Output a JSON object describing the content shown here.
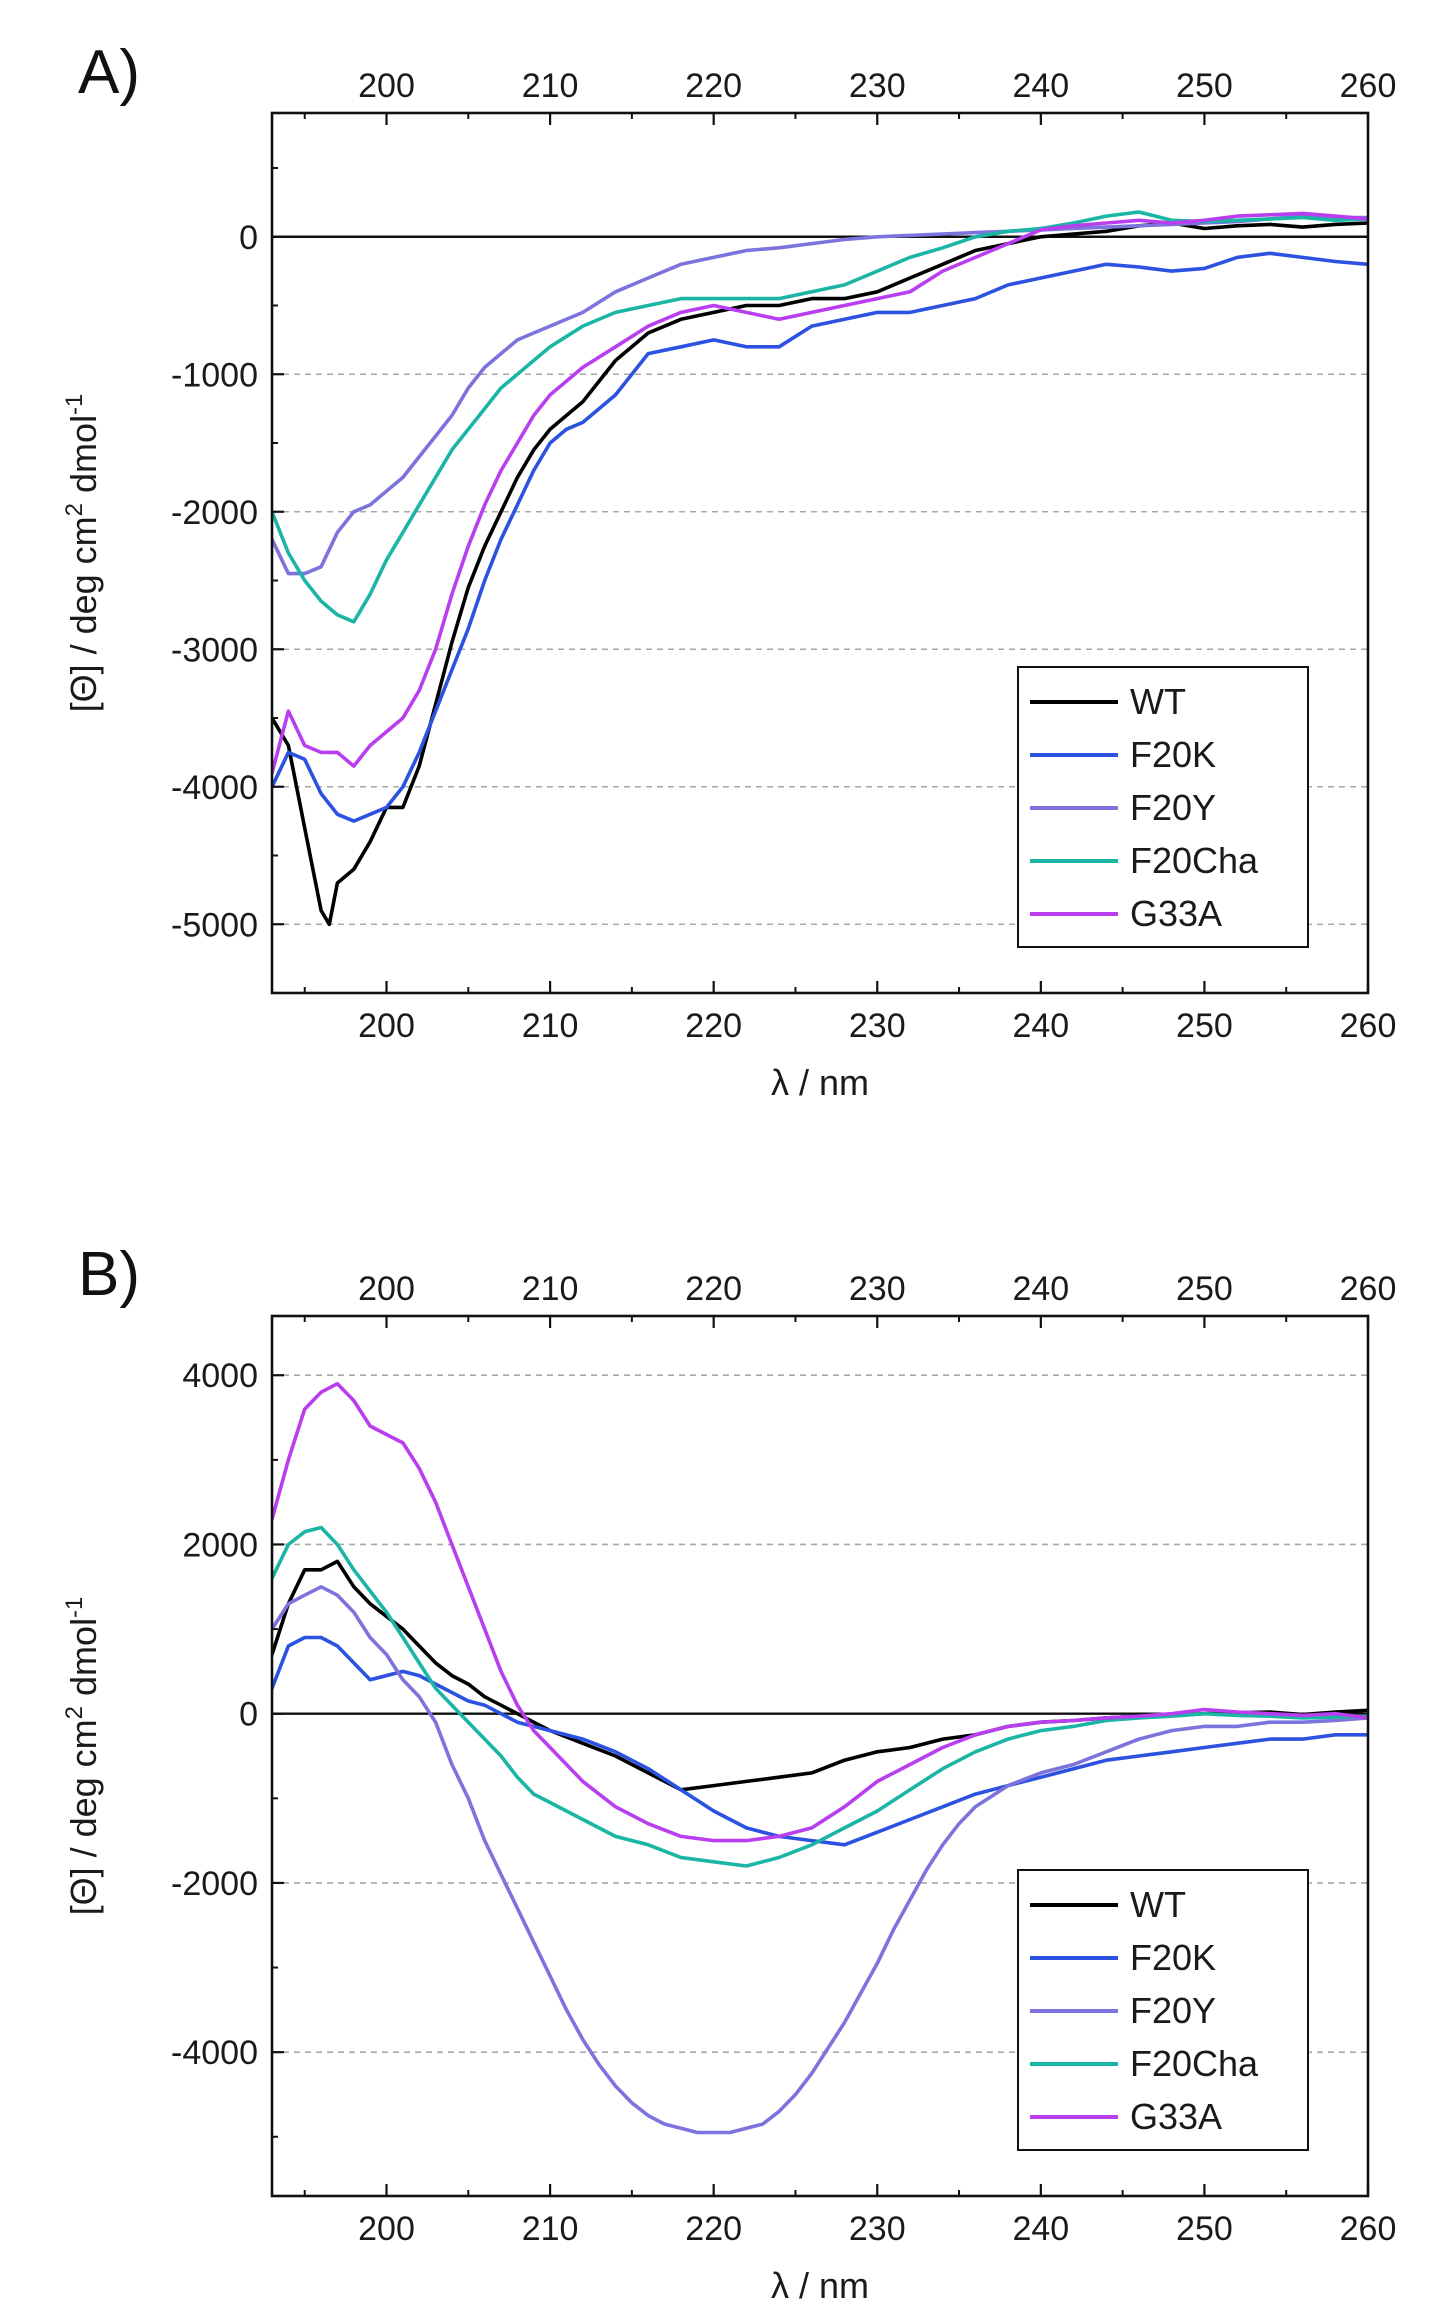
{
  "chart_data": [
    {
      "type": "line",
      "panel_label": "A)",
      "xlabel": "λ / nm",
      "ylabel": {
        "prefix": "[Θ] / deg cm",
        "sup1": "2",
        "mid": " dmol",
        "sup2": "-1"
      },
      "xlim": [
        193,
        260
      ],
      "ylim": [
        -5500,
        900
      ],
      "x_ticks": [
        200,
        210,
        220,
        230,
        240,
        250,
        260
      ],
      "x_tick_labels": [
        "200",
        "210",
        "220",
        "230",
        "240",
        "250",
        "260"
      ],
      "y_ticks": [
        0,
        -1000,
        -2000,
        -3000,
        -4000,
        -5000
      ],
      "y_tick_labels": [
        "0",
        "-1000",
        "-2000",
        "-3000",
        "-4000",
        "-5000"
      ],
      "gridlines": [
        -1000,
        -2000,
        -3000,
        -4000,
        -5000
      ],
      "zero_line": 0,
      "legend_position": "bottom-right",
      "series": [
        {
          "name": "WT",
          "color": "#000000",
          "x": [
            193,
            194,
            195,
            196,
            196.5,
            197,
            198,
            199,
            200,
            201,
            202,
            203,
            204,
            205,
            206,
            207,
            208,
            209,
            210,
            211,
            212,
            214,
            216,
            218,
            220,
            222,
            224,
            226,
            228,
            230,
            232,
            234,
            236,
            238,
            240,
            242,
            244,
            246,
            248,
            250,
            252,
            254,
            256,
            258,
            260
          ],
          "y": [
            -3500,
            -3700,
            -4300,
            -4900,
            -5000,
            -4700,
            -4600,
            -4400,
            -4150,
            -4150,
            -3850,
            -3400,
            -2950,
            -2550,
            -2250,
            -2000,
            -1750,
            -1550,
            -1400,
            -1300,
            -1200,
            -900,
            -700,
            -600,
            -550,
            -500,
            -500,
            -450,
            -450,
            -400,
            -300,
            -200,
            -100,
            -50,
            0,
            20,
            40,
            80,
            100,
            60,
            80,
            90,
            70,
            90,
            100
          ]
        },
        {
          "name": "F20K",
          "color": "#2b52e0",
          "x": [
            193,
            194,
            195,
            196,
            197,
            198,
            199,
            200,
            201,
            202,
            203,
            204,
            205,
            206,
            207,
            208,
            209,
            210,
            211,
            212,
            214,
            216,
            218,
            220,
            222,
            224,
            226,
            228,
            230,
            232,
            234,
            236,
            238,
            240,
            242,
            244,
            246,
            248,
            250,
            252,
            254,
            256,
            258,
            260
          ],
          "y": [
            -4000,
            -3750,
            -3800,
            -4050,
            -4200,
            -4250,
            -4200,
            -4150,
            -4000,
            -3750,
            -3450,
            -3150,
            -2850,
            -2500,
            -2200,
            -1950,
            -1700,
            -1500,
            -1400,
            -1350,
            -1150,
            -850,
            -800,
            -750,
            -800,
            -800,
            -650,
            -600,
            -550,
            -550,
            -500,
            -450,
            -350,
            -300,
            -250,
            -200,
            -220,
            -250,
            -230,
            -150,
            -120,
            -150,
            -180,
            -200
          ]
        },
        {
          "name": "F20Y",
          "color": "#7c73dc",
          "x": [
            193,
            194,
            195,
            196,
            197,
            198,
            199,
            200,
            201,
            202,
            203,
            204,
            205,
            206,
            207,
            208,
            209,
            210,
            212,
            214,
            216,
            218,
            220,
            222,
            224,
            226,
            228,
            230,
            232,
            234,
            236,
            238,
            240,
            242,
            244,
            246,
            248,
            250,
            252,
            254,
            256,
            258,
            260
          ],
          "y": [
            -2200,
            -2450,
            -2450,
            -2400,
            -2150,
            -2000,
            -1950,
            -1850,
            -1750,
            -1600,
            -1450,
            -1300,
            -1100,
            -950,
            -850,
            -750,
            -700,
            -650,
            -550,
            -400,
            -300,
            -200,
            -150,
            -100,
            -80,
            -50,
            -20,
            0,
            10,
            20,
            30,
            40,
            50,
            60,
            70,
            80,
            90,
            100,
            110,
            130,
            150,
            140,
            140
          ]
        },
        {
          "name": "F20Cha",
          "color": "#1ab5a4",
          "x": [
            193,
            194,
            195,
            196,
            197,
            198,
            199,
            200,
            201,
            202,
            203,
            204,
            205,
            206,
            207,
            208,
            209,
            210,
            212,
            214,
            216,
            218,
            220,
            222,
            224,
            226,
            228,
            230,
            232,
            234,
            236,
            238,
            240,
            242,
            244,
            246,
            248,
            250,
            252,
            254,
            256,
            258,
            260
          ],
          "y": [
            -2000,
            -2300,
            -2500,
            -2650,
            -2750,
            -2800,
            -2600,
            -2350,
            -2150,
            -1950,
            -1750,
            -1550,
            -1400,
            -1250,
            -1100,
            -1000,
            -900,
            -800,
            -650,
            -550,
            -500,
            -450,
            -450,
            -450,
            -450,
            -400,
            -350,
            -250,
            -150,
            -80,
            0,
            40,
            60,
            100,
            150,
            180,
            120,
            110,
            120,
            130,
            140,
            120,
            130
          ]
        },
        {
          "name": "G33A",
          "color": "#b93ef0",
          "x": [
            193,
            194,
            195,
            196,
            197,
            198,
            199,
            200,
            201,
            202,
            203,
            204,
            205,
            206,
            207,
            208,
            209,
            210,
            212,
            214,
            216,
            218,
            220,
            222,
            224,
            226,
            228,
            230,
            232,
            234,
            236,
            238,
            240,
            242,
            244,
            246,
            248,
            250,
            252,
            254,
            256,
            258,
            260
          ],
          "y": [
            -3900,
            -3450,
            -3700,
            -3750,
            -3750,
            -3850,
            -3700,
            -3600,
            -3500,
            -3300,
            -3000,
            -2600,
            -2250,
            -1950,
            -1700,
            -1500,
            -1300,
            -1150,
            -950,
            -800,
            -650,
            -550,
            -500,
            -550,
            -600,
            -550,
            -500,
            -450,
            -400,
            -250,
            -150,
            -50,
            50,
            80,
            100,
            120,
            100,
            120,
            150,
            160,
            170,
            150,
            130
          ]
        }
      ]
    },
    {
      "type": "line",
      "panel_label": "B)",
      "xlabel": "λ / nm",
      "ylabel": {
        "prefix": "[Θ] / deg cm",
        "sup1": "2",
        "mid": " dmol",
        "sup2": "-1"
      },
      "xlim": [
        193,
        260
      ],
      "ylim": [
        -5700,
        4700
      ],
      "x_ticks": [
        200,
        210,
        220,
        230,
        240,
        250,
        260
      ],
      "x_tick_labels": [
        "200",
        "210",
        "220",
        "230",
        "240",
        "250",
        "260"
      ],
      "y_ticks": [
        4000,
        2000,
        0,
        -2000,
        -4000
      ],
      "y_tick_labels": [
        "4000",
        "2000",
        "0",
        "-2000",
        "-4000"
      ],
      "gridlines": [
        4000,
        2000,
        -2000,
        -4000
      ],
      "zero_line": 0,
      "legend_position": "bottom-right",
      "series": [
        {
          "name": "WT",
          "color": "#000000",
          "x": [
            193,
            194,
            195,
            196,
            197,
            198,
            199,
            200,
            201,
            202,
            203,
            204,
            205,
            206,
            207,
            208,
            209,
            210,
            212,
            214,
            216,
            218,
            220,
            222,
            224,
            226,
            228,
            230,
            232,
            234,
            236,
            238,
            240,
            242,
            244,
            246,
            248,
            250,
            252,
            254,
            256,
            258,
            260
          ],
          "y": [
            700,
            1300,
            1700,
            1700,
            1800,
            1500,
            1300,
            1150,
            1000,
            800,
            600,
            450,
            350,
            200,
            100,
            0,
            -100,
            -200,
            -350,
            -500,
            -700,
            -900,
            -850,
            -800,
            -750,
            -700,
            -550,
            -450,
            -400,
            -300,
            -250,
            -150,
            -100,
            -80,
            -50,
            -30,
            -20,
            0,
            10,
            20,
            -10,
            20,
            40
          ]
        },
        {
          "name": "F20K",
          "color": "#2b52e0",
          "x": [
            193,
            194,
            195,
            196,
            197,
            198,
            199,
            200,
            201,
            202,
            203,
            204,
            205,
            206,
            207,
            208,
            209,
            210,
            212,
            214,
            216,
            218,
            220,
            222,
            224,
            226,
            228,
            230,
            232,
            234,
            236,
            238,
            240,
            242,
            244,
            246,
            248,
            250,
            252,
            254,
            256,
            258,
            260
          ],
          "y": [
            300,
            800,
            900,
            900,
            800,
            600,
            400,
            450,
            500,
            450,
            350,
            250,
            150,
            100,
            0,
            -100,
            -150,
            -200,
            -300,
            -450,
            -650,
            -900,
            -1150,
            -1350,
            -1450,
            -1500,
            -1550,
            -1400,
            -1250,
            -1100,
            -950,
            -850,
            -750,
            -650,
            -550,
            -500,
            -450,
            -400,
            -350,
            -300,
            -300,
            -250,
            -250
          ]
        },
        {
          "name": "F20Y",
          "color": "#7c73dc",
          "x": [
            193,
            194,
            195,
            196,
            197,
            198,
            199,
            200,
            201,
            202,
            203,
            204,
            205,
            206,
            207,
            208,
            209,
            210,
            211,
            212,
            213,
            214,
            215,
            216,
            217,
            218,
            219,
            220,
            221,
            222,
            223,
            224,
            225,
            226,
            227,
            228,
            229,
            230,
            231,
            232,
            233,
            234,
            235,
            236,
            238,
            240,
            242,
            244,
            246,
            248,
            250,
            252,
            254,
            256,
            258,
            260
          ],
          "y": [
            1000,
            1300,
            1400,
            1500,
            1400,
            1200,
            900,
            700,
            400,
            200,
            -100,
            -600,
            -1000,
            -1500,
            -1900,
            -2300,
            -2700,
            -3100,
            -3500,
            -3850,
            -4150,
            -4400,
            -4600,
            -4750,
            -4850,
            -4900,
            -4950,
            -4950,
            -4950,
            -4900,
            -4850,
            -4700,
            -4500,
            -4250,
            -3950,
            -3650,
            -3300,
            -2950,
            -2550,
            -2200,
            -1850,
            -1550,
            -1300,
            -1100,
            -850,
            -700,
            -600,
            -450,
            -300,
            -200,
            -150,
            -150,
            -100,
            -100,
            -80,
            -50
          ]
        },
        {
          "name": "F20Cha",
          "color": "#1ab5a4",
          "x": [
            193,
            194,
            195,
            196,
            197,
            198,
            199,
            200,
            201,
            202,
            203,
            204,
            205,
            206,
            207,
            208,
            209,
            210,
            212,
            214,
            216,
            218,
            220,
            222,
            224,
            226,
            228,
            230,
            232,
            234,
            236,
            238,
            240,
            242,
            244,
            246,
            248,
            250,
            252,
            254,
            256,
            258,
            260
          ],
          "y": [
            1600,
            2000,
            2150,
            2200,
            2000,
            1700,
            1450,
            1200,
            900,
            600,
            300,
            100,
            -100,
            -300,
            -500,
            -750,
            -950,
            -1050,
            -1250,
            -1450,
            -1550,
            -1700,
            -1750,
            -1800,
            -1700,
            -1550,
            -1350,
            -1150,
            -900,
            -650,
            -450,
            -300,
            -200,
            -150,
            -80,
            -50,
            -30,
            0,
            -20,
            -30,
            -50,
            -40,
            -30
          ]
        },
        {
          "name": "G33A",
          "color": "#b93ef0",
          "x": [
            193,
            194,
            195,
            196,
            197,
            198,
            199,
            200,
            201,
            202,
            203,
            204,
            205,
            206,
            207,
            208,
            209,
            210,
            212,
            214,
            216,
            218,
            220,
            222,
            224,
            226,
            228,
            230,
            232,
            234,
            236,
            238,
            240,
            242,
            244,
            246,
            248,
            250,
            252,
            254,
            256,
            258,
            260
          ],
          "y": [
            2300,
            3000,
            3600,
            3800,
            3900,
            3700,
            3400,
            3300,
            3200,
            2900,
            2500,
            2000,
            1500,
            1000,
            500,
            100,
            -200,
            -400,
            -800,
            -1100,
            -1300,
            -1450,
            -1500,
            -1500,
            -1450,
            -1350,
            -1100,
            -800,
            -600,
            -400,
            -250,
            -150,
            -100,
            -80,
            -50,
            -30,
            0,
            50,
            20,
            0,
            -20,
            0,
            -50
          ]
        }
      ]
    }
  ]
}
